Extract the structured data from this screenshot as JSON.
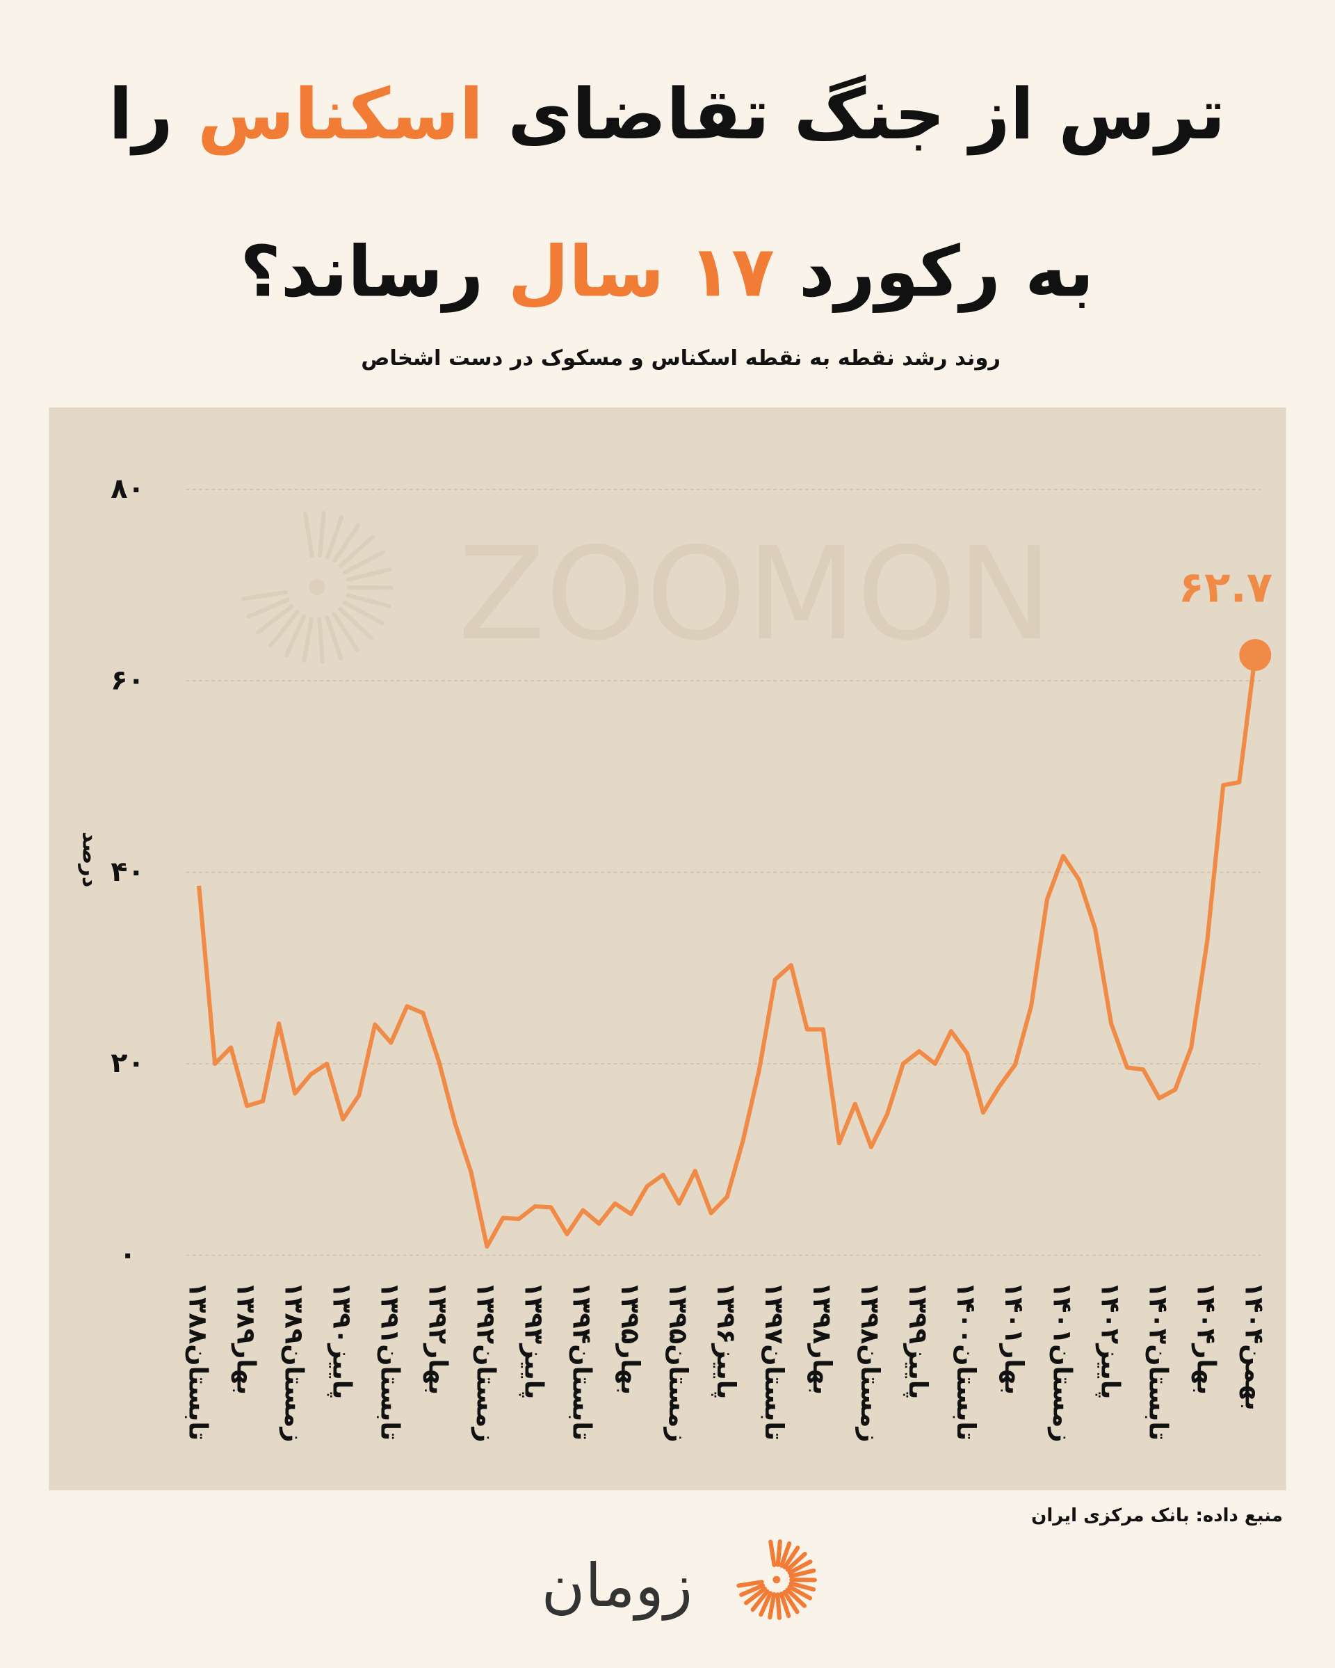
{
  "chart_data": {
    "type": "line",
    "title": [
      [
        {
          "text": "ترس از جنگ تقاضای "
        },
        {
          "text": "اسکناس",
          "highlight": true
        },
        {
          "text": " را"
        }
      ],
      [
        {
          "text": "به رکورد "
        },
        {
          "text": "۱۷ سال",
          "highlight": true
        },
        {
          "text": " رساند؟"
        }
      ]
    ],
    "highlight_color": "#f07c36",
    "subtitle": "روند رشد نقطه به نقطه اسکناس و مسکوک در دست اشخاص",
    "y_label": "درصد",
    "source": "منبع داده: بانک مرکزی ایران",
    "watermark": "ZOOMON",
    "brand": "زومان",
    "color": "#f08a47",
    "grid": true,
    "ylim": [
      0,
      80
    ],
    "yticks": [
      {
        "value": 0,
        "label": "۰"
      },
      {
        "value": 20,
        "label": "۲۰"
      },
      {
        "value": 40,
        "label": "۴۰"
      },
      {
        "value": 60,
        "label": "۶۰"
      },
      {
        "value": 80,
        "label": "۸۰"
      }
    ],
    "categories": [
      "تابستان۱۳۸۸",
      null,
      null,
      "بهار۱۳۸۹",
      null,
      null,
      "زمستان۱۳۸۹",
      null,
      null,
      "پاییز۱۳۹۰",
      null,
      null,
      "تابستان۱۳۹۱",
      null,
      null,
      "بهار۱۳۹۲",
      null,
      null,
      "زمستان۱۳۹۲",
      null,
      null,
      "پاییز۱۳۹۳",
      null,
      null,
      "تابستان۱۳۹۴",
      null,
      null,
      "بهار۱۳۹۵",
      null,
      null,
      "زمستان۱۳۹۵",
      null,
      null,
      "پاییز۱۳۹۶",
      null,
      null,
      "تابستان۱۳۹۷",
      null,
      null,
      "بهار۱۳۹۸",
      null,
      null,
      "زمستان۱۳۹۸",
      null,
      null,
      "پاییز۱۳۹۹",
      null,
      null,
      "تابستان۱۴۰۰",
      null,
      null,
      "بهار۱۴۰۱",
      null,
      null,
      "زمستان۱۴۰۱",
      null,
      null,
      "پاییز۱۴۰۲",
      null,
      null,
      "تابستان۱۴۰۳",
      null,
      null,
      "بهار۱۴۰۴",
      null,
      null,
      "بهمن۱۴۰۴"
    ],
    "values": [
      38.6,
      20.0,
      21.7,
      15.6,
      16.1,
      24.2,
      16.9,
      18.9,
      20.0,
      14.2,
      16.7,
      24.1,
      22.2,
      26.0,
      25.3,
      20.2,
      13.8,
      8.7,
      0.9,
      3.9,
      3.8,
      5.1,
      5.0,
      2.2,
      4.7,
      3.3,
      5.4,
      4.3,
      7.2,
      8.4,
      5.4,
      8.8,
      4.4,
      6.1,
      12.0,
      19.3,
      28.8,
      30.3,
      23.6,
      23.6,
      11.7,
      15.8,
      11.3,
      14.7,
      20.0,
      21.3,
      20.0,
      23.4,
      21.1,
      14.9,
      17.6,
      19.9,
      26.0,
      37.2,
      41.7,
      39.2,
      34.1,
      24.2,
      19.6,
      19.4,
      16.4,
      17.3,
      21.7,
      32.8,
      49.1,
      49.4,
      62.7
    ],
    "value_labels": [
      null,
      null,
      null,
      null,
      null,
      null,
      null,
      null,
      null,
      null,
      null,
      null,
      null,
      null,
      null,
      null,
      null,
      null,
      null,
      null,
      null,
      null,
      null,
      null,
      null,
      null,
      null,
      null,
      null,
      null,
      null,
      null,
      null,
      null,
      null,
      null,
      null,
      null,
      null,
      null,
      null,
      null,
      null,
      null,
      null,
      null,
      null,
      null,
      null,
      null,
      null,
      null,
      null,
      null,
      null,
      null,
      null,
      null,
      null,
      null,
      null,
      null,
      null,
      null,
      null,
      null,
      "۶۲.۷"
    ]
  }
}
